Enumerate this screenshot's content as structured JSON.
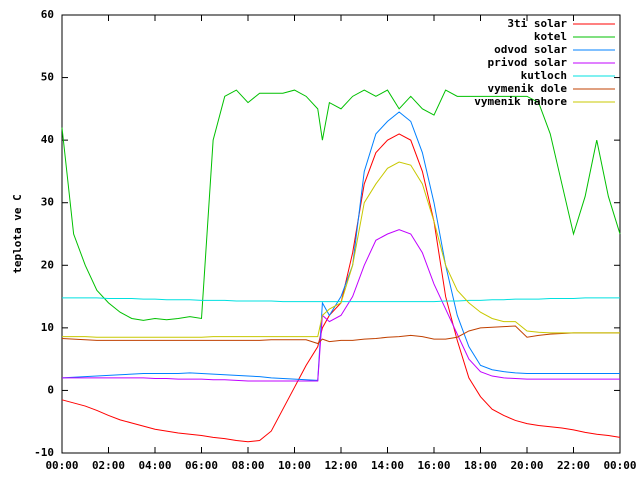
{
  "chart_data": {
    "type": "line",
    "y_label": "teplota ve C",
    "x": [
      0,
      0.5,
      1,
      1.5,
      2,
      2.5,
      3,
      3.5,
      4,
      4.5,
      5,
      5.5,
      6,
      6.5,
      7,
      7.5,
      8,
      8.5,
      9,
      9.5,
      10,
      10.5,
      11,
      11.2,
      11.5,
      12,
      12.5,
      13,
      13.5,
      14,
      14.5,
      15,
      15.5,
      16,
      16.5,
      17,
      17.5,
      18,
      18.5,
      19,
      19.5,
      20,
      20.5,
      21,
      21.5,
      22,
      22.5,
      23,
      23.5,
      24
    ],
    "xlim": [
      0,
      24
    ],
    "xticks": [
      {
        "value": 0,
        "label": "00:00"
      },
      {
        "value": 2,
        "label": "02:00"
      },
      {
        "value": 4,
        "label": "04:00"
      },
      {
        "value": 6,
        "label": "06:00"
      },
      {
        "value": 8,
        "label": "08:00"
      },
      {
        "value": 10,
        "label": "10:00"
      },
      {
        "value": 12,
        "label": "12:00"
      },
      {
        "value": 14,
        "label": "14:00"
      },
      {
        "value": 16,
        "label": "16:00"
      },
      {
        "value": 18,
        "label": "18:00"
      },
      {
        "value": 20,
        "label": "20:00"
      },
      {
        "value": 22,
        "label": "22:00"
      },
      {
        "value": 24,
        "label": "00:00"
      }
    ],
    "ylim": [
      -10,
      60
    ],
    "yticks": [
      -10,
      0,
      10,
      20,
      30,
      40,
      50,
      60
    ],
    "series": [
      {
        "name": "3ti solar",
        "color": "#ff0000",
        "values": [
          -1.5,
          -2,
          -2.5,
          -3.2,
          -4,
          -4.7,
          -5.2,
          -5.7,
          -6.2,
          -6.5,
          -6.8,
          -7,
          -7.2,
          -7.5,
          -7.7,
          -8,
          -8.2,
          -8,
          -6.5,
          -3,
          0.5,
          4,
          7,
          10,
          12,
          14,
          22,
          33,
          38,
          40,
          41,
          40,
          35,
          27,
          15,
          8,
          2,
          -1,
          -3,
          -4,
          -4.8,
          -5.3,
          -5.6,
          -5.8,
          -6,
          -6.3,
          -6.7,
          -7,
          -7.2,
          -7.5
        ]
      },
      {
        "name": "kotel",
        "color": "#00c000",
        "values": [
          42,
          25,
          20,
          16,
          14,
          12.5,
          11.5,
          11.2,
          11.5,
          11.3,
          11.5,
          11.8,
          11.5,
          40,
          47,
          48,
          46,
          47.5,
          47.5,
          47.5,
          48,
          47,
          45,
          40,
          46,
          45,
          47,
          48,
          47,
          48,
          45,
          47,
          45,
          44,
          48,
          47,
          47,
          47,
          47,
          47,
          47,
          47,
          46,
          41,
          33,
          25,
          31,
          40,
          31,
          25
        ]
      },
      {
        "name": "odvod solar",
        "color": "#0080ff",
        "values": [
          2,
          2.1,
          2.2,
          2.3,
          2.4,
          2.5,
          2.6,
          2.7,
          2.7,
          2.7,
          2.7,
          2.8,
          2.7,
          2.6,
          2.5,
          2.4,
          2.3,
          2.2,
          2,
          1.9,
          1.8,
          1.7,
          1.6,
          14,
          12,
          15,
          20,
          35,
          41,
          43,
          44.5,
          43,
          38,
          30,
          20,
          12,
          7,
          4,
          3.3,
          3,
          2.8,
          2.7,
          2.7,
          2.7,
          2.7,
          2.7,
          2.7,
          2.7,
          2.7,
          2.7
        ]
      },
      {
        "name": "privod solar",
        "color": "#c000ff",
        "values": [
          2,
          2,
          2,
          2,
          2,
          2,
          2,
          2,
          1.9,
          1.9,
          1.8,
          1.8,
          1.8,
          1.7,
          1.7,
          1.6,
          1.5,
          1.5,
          1.5,
          1.5,
          1.5,
          1.5,
          1.5,
          12,
          11,
          12,
          15,
          20,
          24,
          25,
          25.7,
          25,
          22,
          17,
          13,
          9,
          5,
          3,
          2.3,
          2,
          1.9,
          1.8,
          1.8,
          1.8,
          1.8,
          1.8,
          1.8,
          1.8,
          1.8,
          1.8
        ]
      },
      {
        "name": "kutloch",
        "color": "#00e0e0",
        "values": [
          14.8,
          14.8,
          14.8,
          14.8,
          14.7,
          14.7,
          14.7,
          14.6,
          14.6,
          14.5,
          14.5,
          14.5,
          14.4,
          14.4,
          14.4,
          14.3,
          14.3,
          14.3,
          14.3,
          14.2,
          14.2,
          14.2,
          14.2,
          14.2,
          14.2,
          14.2,
          14.2,
          14.2,
          14.2,
          14.2,
          14.2,
          14.2,
          14.2,
          14.2,
          14.3,
          14.3,
          14.4,
          14.4,
          14.5,
          14.5,
          14.6,
          14.6,
          14.6,
          14.7,
          14.7,
          14.7,
          14.8,
          14.8,
          14.8,
          14.8
        ]
      },
      {
        "name": "vymenik dole",
        "color": "#c04000",
        "values": [
          8.3,
          8.2,
          8.1,
          8,
          8,
          8,
          8,
          8,
          8,
          8,
          8,
          8,
          8,
          8,
          8,
          8,
          8,
          8,
          8.1,
          8.1,
          8.1,
          8.1,
          7.5,
          8.2,
          7.8,
          8,
          8,
          8.2,
          8.3,
          8.5,
          8.6,
          8.8,
          8.6,
          8.2,
          8.2,
          8.5,
          9.5,
          10,
          10.1,
          10.2,
          10.3,
          8.5,
          8.8,
          9,
          9.1,
          9.2,
          9.2,
          9.2,
          9.2,
          9.2
        ]
      },
      {
        "name": "vymenik nahore",
        "color": "#c8c800",
        "values": [
          8.6,
          8.6,
          8.6,
          8.5,
          8.5,
          8.5,
          8.5,
          8.5,
          8.5,
          8.5,
          8.5,
          8.5,
          8.5,
          8.6,
          8.6,
          8.6,
          8.6,
          8.6,
          8.6,
          8.6,
          8.6,
          8.6,
          8.6,
          12,
          13,
          14,
          20,
          30,
          33,
          35.5,
          36.5,
          36,
          33,
          27,
          20,
          16,
          14,
          12.5,
          11.5,
          11,
          11,
          9.5,
          9.3,
          9.2,
          9.2,
          9.2,
          9.2,
          9.2,
          9.2,
          9.2
        ]
      }
    ]
  }
}
